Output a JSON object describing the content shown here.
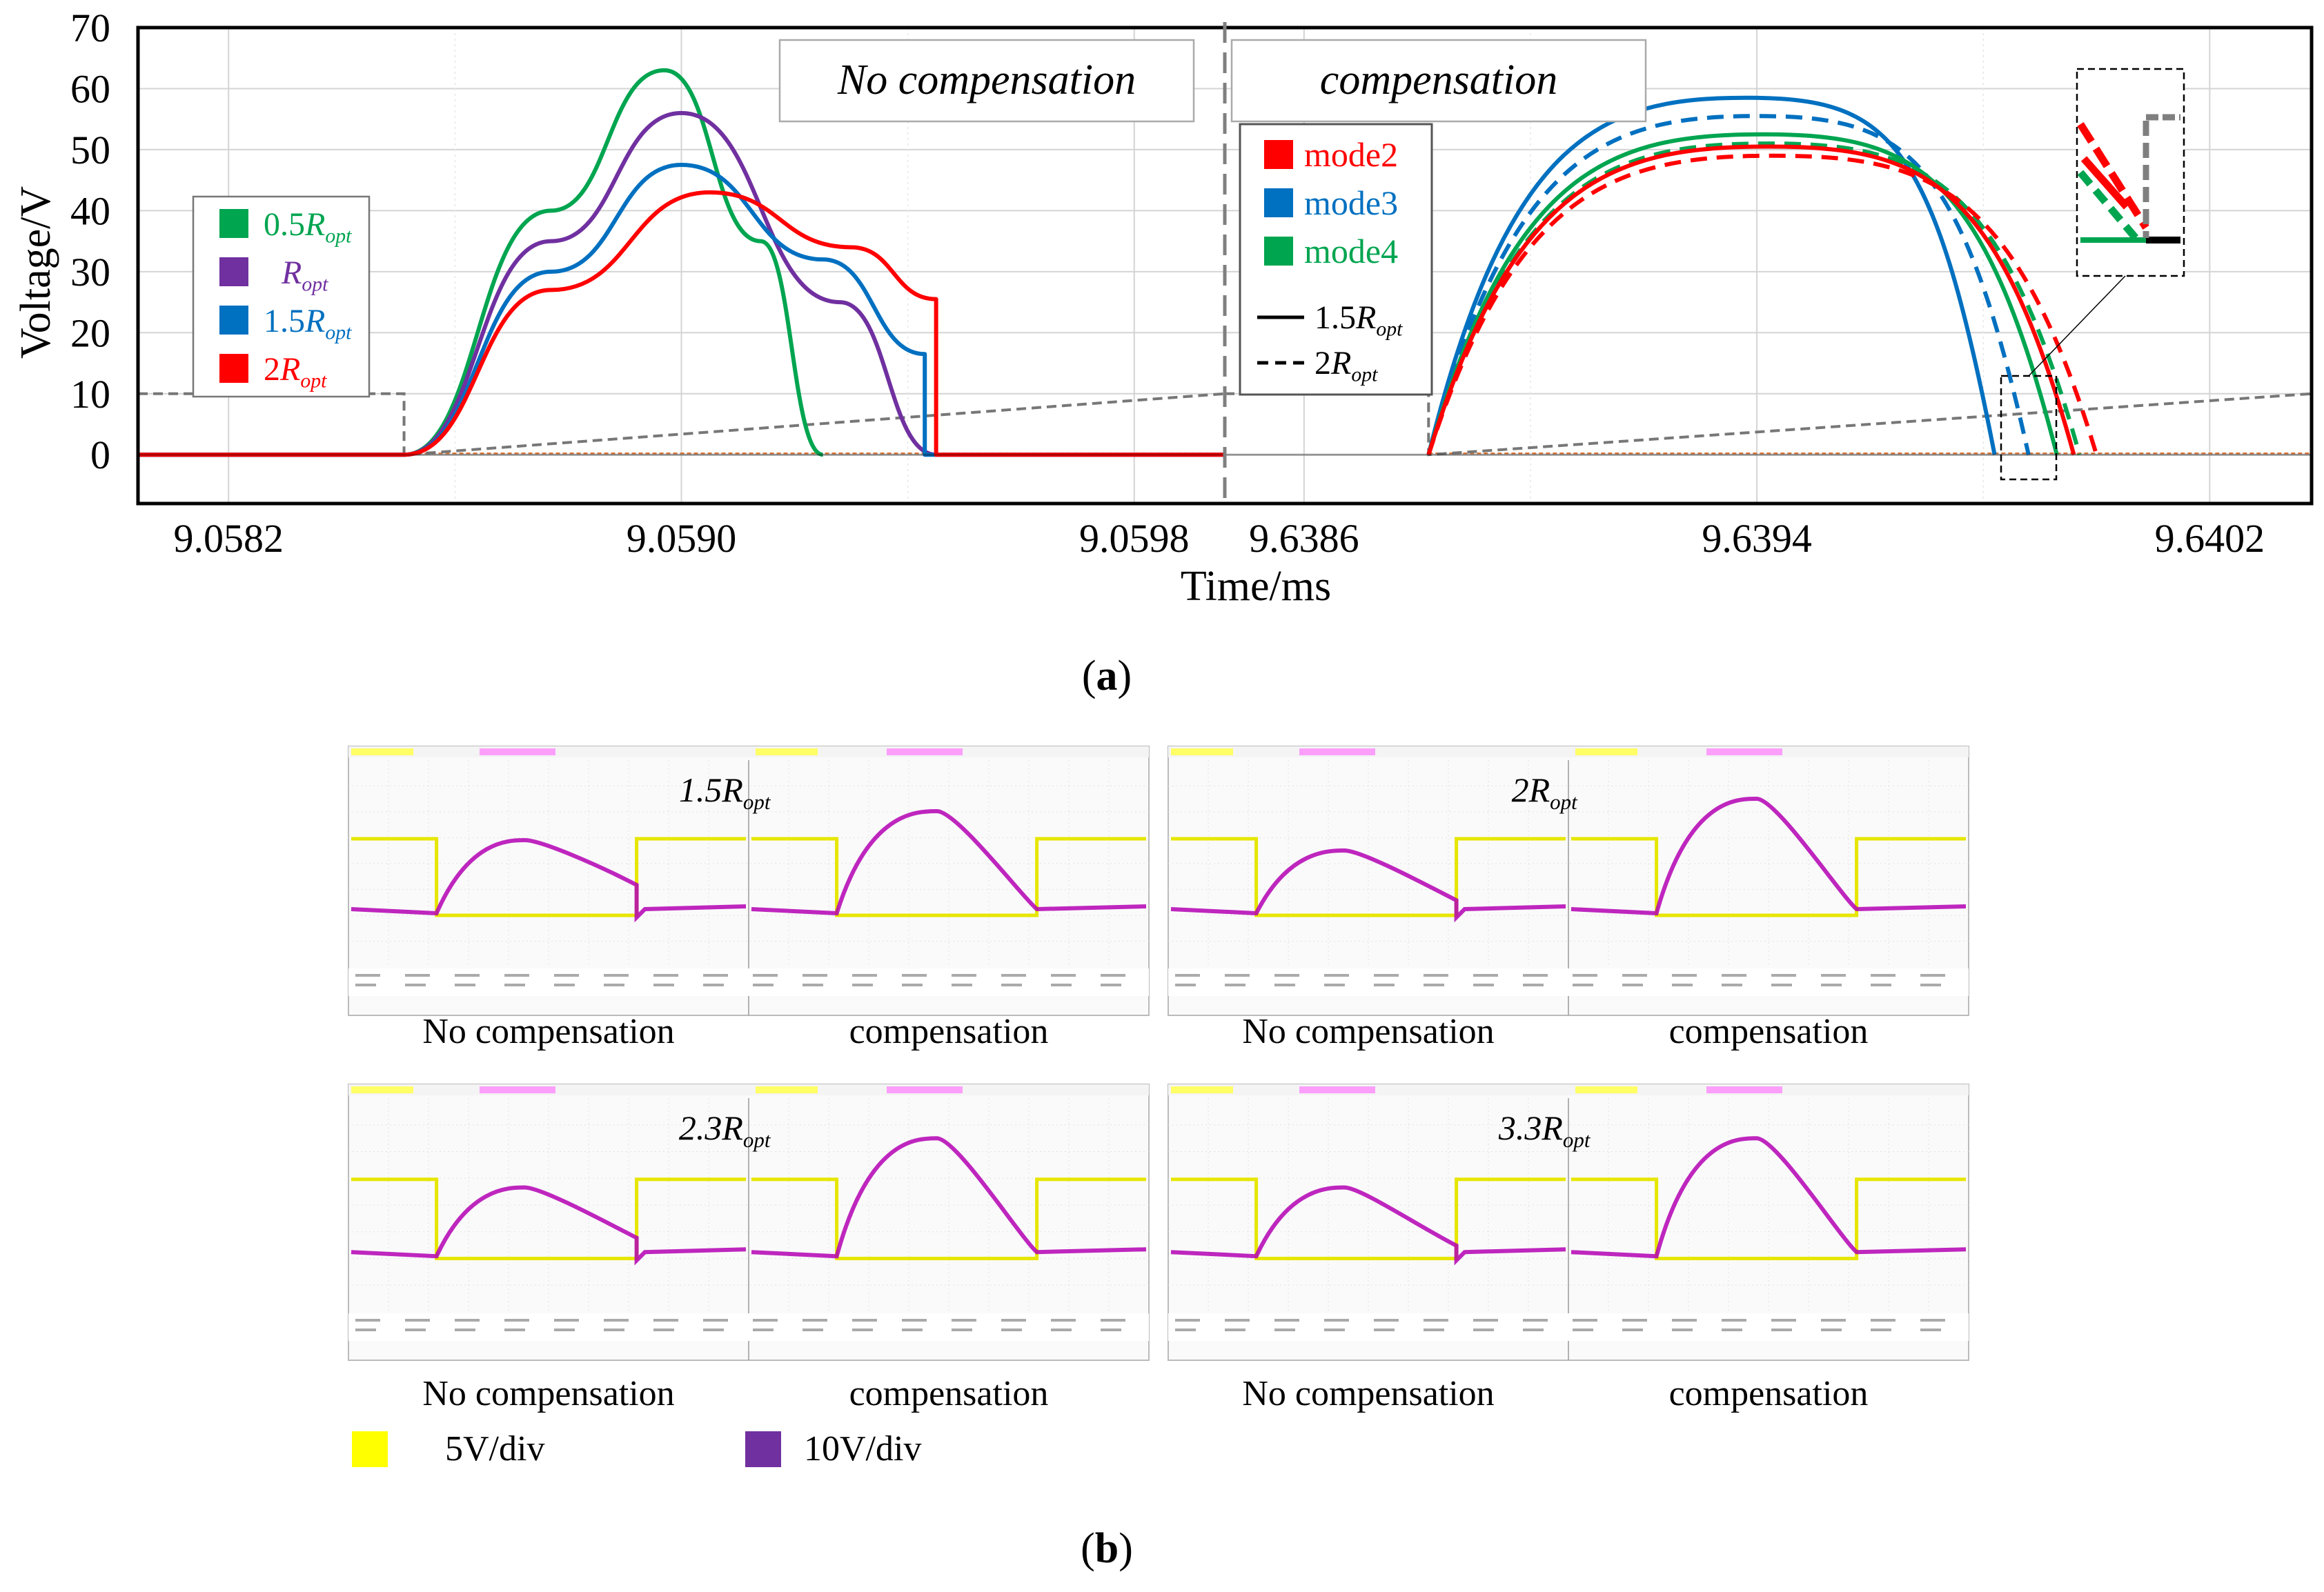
{
  "chart_data": [
    {
      "panel": "a",
      "type": "line",
      "ylabel": "Voltage/V",
      "xlabel": "Time/ms",
      "ylim": [
        -8,
        70
      ],
      "yticks": [
        0,
        10,
        20,
        30,
        40,
        50,
        60,
        70
      ],
      "grid": true,
      "left_window": {
        "xlim": [
          9.05804,
          9.05996
        ],
        "xticks": [
          "9.0582",
          "9.0590",
          "9.0598"
        ],
        "xtick_values": [
          9.0582,
          9.059,
          9.0598
        ],
        "banner": "No compensation",
        "gate_signal": {
          "x": [
            9.05804,
            9.05851,
            9.05851,
            9.05996
          ],
          "y": [
            10,
            10,
            0,
            10
          ],
          "style": "dashed",
          "color": "#777777"
        },
        "series": [
          {
            "name": "0.5R_opt",
            "color": "#00a550",
            "x": [
              9.05804,
              9.05851,
              9.05877,
              9.05897,
              9.05914,
              9.05925
            ],
            "y": [
              0,
              0,
              40,
              63,
              35,
              0
            ]
          },
          {
            "name": "R_opt",
            "color": "#7030a0",
            "x": [
              9.05804,
              9.05851,
              9.05877,
              9.059,
              9.05928,
              9.05945
            ],
            "y": [
              0,
              0,
              35,
              56,
              25,
              0
            ]
          },
          {
            "name": "1.5R_opt",
            "color": "#0070c0",
            "x": [
              9.05804,
              9.05851,
              9.05877,
              9.059,
              9.05925,
              9.05943,
              9.05943,
              9.05996
            ],
            "y": [
              0,
              0,
              30,
              47.5,
              32,
              16.5,
              0,
              0
            ]
          },
          {
            "name": "2R_opt",
            "color": "#ff0000",
            "x": [
              9.05804,
              9.05851,
              9.05877,
              9.05905,
              9.0593,
              9.05945,
              9.05945,
              9.05996
            ],
            "y": [
              0,
              0,
              27,
              43,
              34,
              25.5,
              0,
              0
            ]
          }
        ]
      },
      "right_window": {
        "xlim": [
          9.63846,
          9.64038
        ],
        "xticks": [
          "9.6386",
          "9.6394",
          "9.6402"
        ],
        "xtick_values": [
          9.6386,
          9.6394,
          9.6402
        ],
        "banner": "compensation",
        "gate_signal": {
          "x": [
            9.63846,
            9.63882,
            9.63882,
            9.64038
          ],
          "y": [
            10,
            10,
            0,
            10
          ],
          "style": "dashed",
          "color": "#777777"
        },
        "series": [
          {
            "name": "mode3 1.5R_opt",
            "color": "#0070c0",
            "style": "solid",
            "x": [
              9.63882,
              9.63938,
              9.63982
            ],
            "y": [
              0,
              58.5,
              0
            ]
          },
          {
            "name": "mode3 2R_opt",
            "color": "#0070c0",
            "style": "dashed",
            "x": [
              9.63882,
              9.6394,
              9.63988
            ],
            "y": [
              0,
              55.5,
              0
            ]
          },
          {
            "name": "mode4 1.5R_opt",
            "color": "#00a550",
            "style": "solid",
            "x": [
              9.63882,
              9.63941,
              9.63993
            ],
            "y": [
              0,
              52.5,
              0
            ]
          },
          {
            "name": "mode4 2R_opt",
            "color": "#00a550",
            "style": "dashed",
            "x": [
              9.63882,
              9.63942,
              9.63997
            ],
            "y": [
              0,
              51,
              0
            ]
          },
          {
            "name": "mode2 1.5R_opt",
            "color": "#ff0000",
            "style": "solid",
            "x": [
              9.63882,
              9.63942,
              9.63996
            ],
            "y": [
              0,
              50.5,
              0
            ]
          },
          {
            "name": "mode2 2R_opt",
            "color": "#ff0000",
            "style": "dashed",
            "x": [
              9.63882,
              9.63943,
              9.64
            ],
            "y": [
              0,
              49,
              0
            ]
          }
        ]
      },
      "legend_left": [
        {
          "label": "0.5",
          "sub": "opt",
          "R": "R",
          "color": "#00a550"
        },
        {
          "label": "",
          "sub": "opt",
          "R": "R",
          "color": "#7030a0"
        },
        {
          "label": "1.5",
          "sub": "opt",
          "R": "R",
          "color": "#0070c0"
        },
        {
          "label": "2",
          "sub": "opt",
          "R": "R",
          "color": "#ff0000"
        }
      ],
      "legend_right_modes": [
        {
          "label": "mode2",
          "color": "#ff0000"
        },
        {
          "label": "mode3",
          "color": "#0070c0"
        },
        {
          "label": "mode4",
          "color": "#00a550"
        }
      ],
      "legend_right_styles": [
        {
          "label": "1.5",
          "R": "R",
          "sub": "opt",
          "style": "solid"
        },
        {
          "label": "2",
          "R": "R",
          "sub": "opt",
          "style": "dashed"
        }
      ],
      "caption": "a"
    },
    {
      "panel": "b",
      "type": "line",
      "description_labels": true,
      "scopes": [
        {
          "load": "1.5R",
          "sub": "opt",
          "left_label": "No compensation",
          "right_label": "compensation"
        },
        {
          "load": "2R",
          "sub": "opt",
          "left_label": "No compensation",
          "right_label": "compensation"
        },
        {
          "load": "2.3R",
          "sub": "opt",
          "left_label": "No compensation",
          "right_label": "compensation"
        },
        {
          "load": "3.3R",
          "sub": "opt",
          "left_label": "No compensation",
          "right_label": "compensation"
        }
      ],
      "legend": [
        {
          "label": "5V/div",
          "color": "#ffff00"
        },
        {
          "label": "10V/div",
          "color": "#7030a0"
        }
      ],
      "caption": "b"
    }
  ]
}
